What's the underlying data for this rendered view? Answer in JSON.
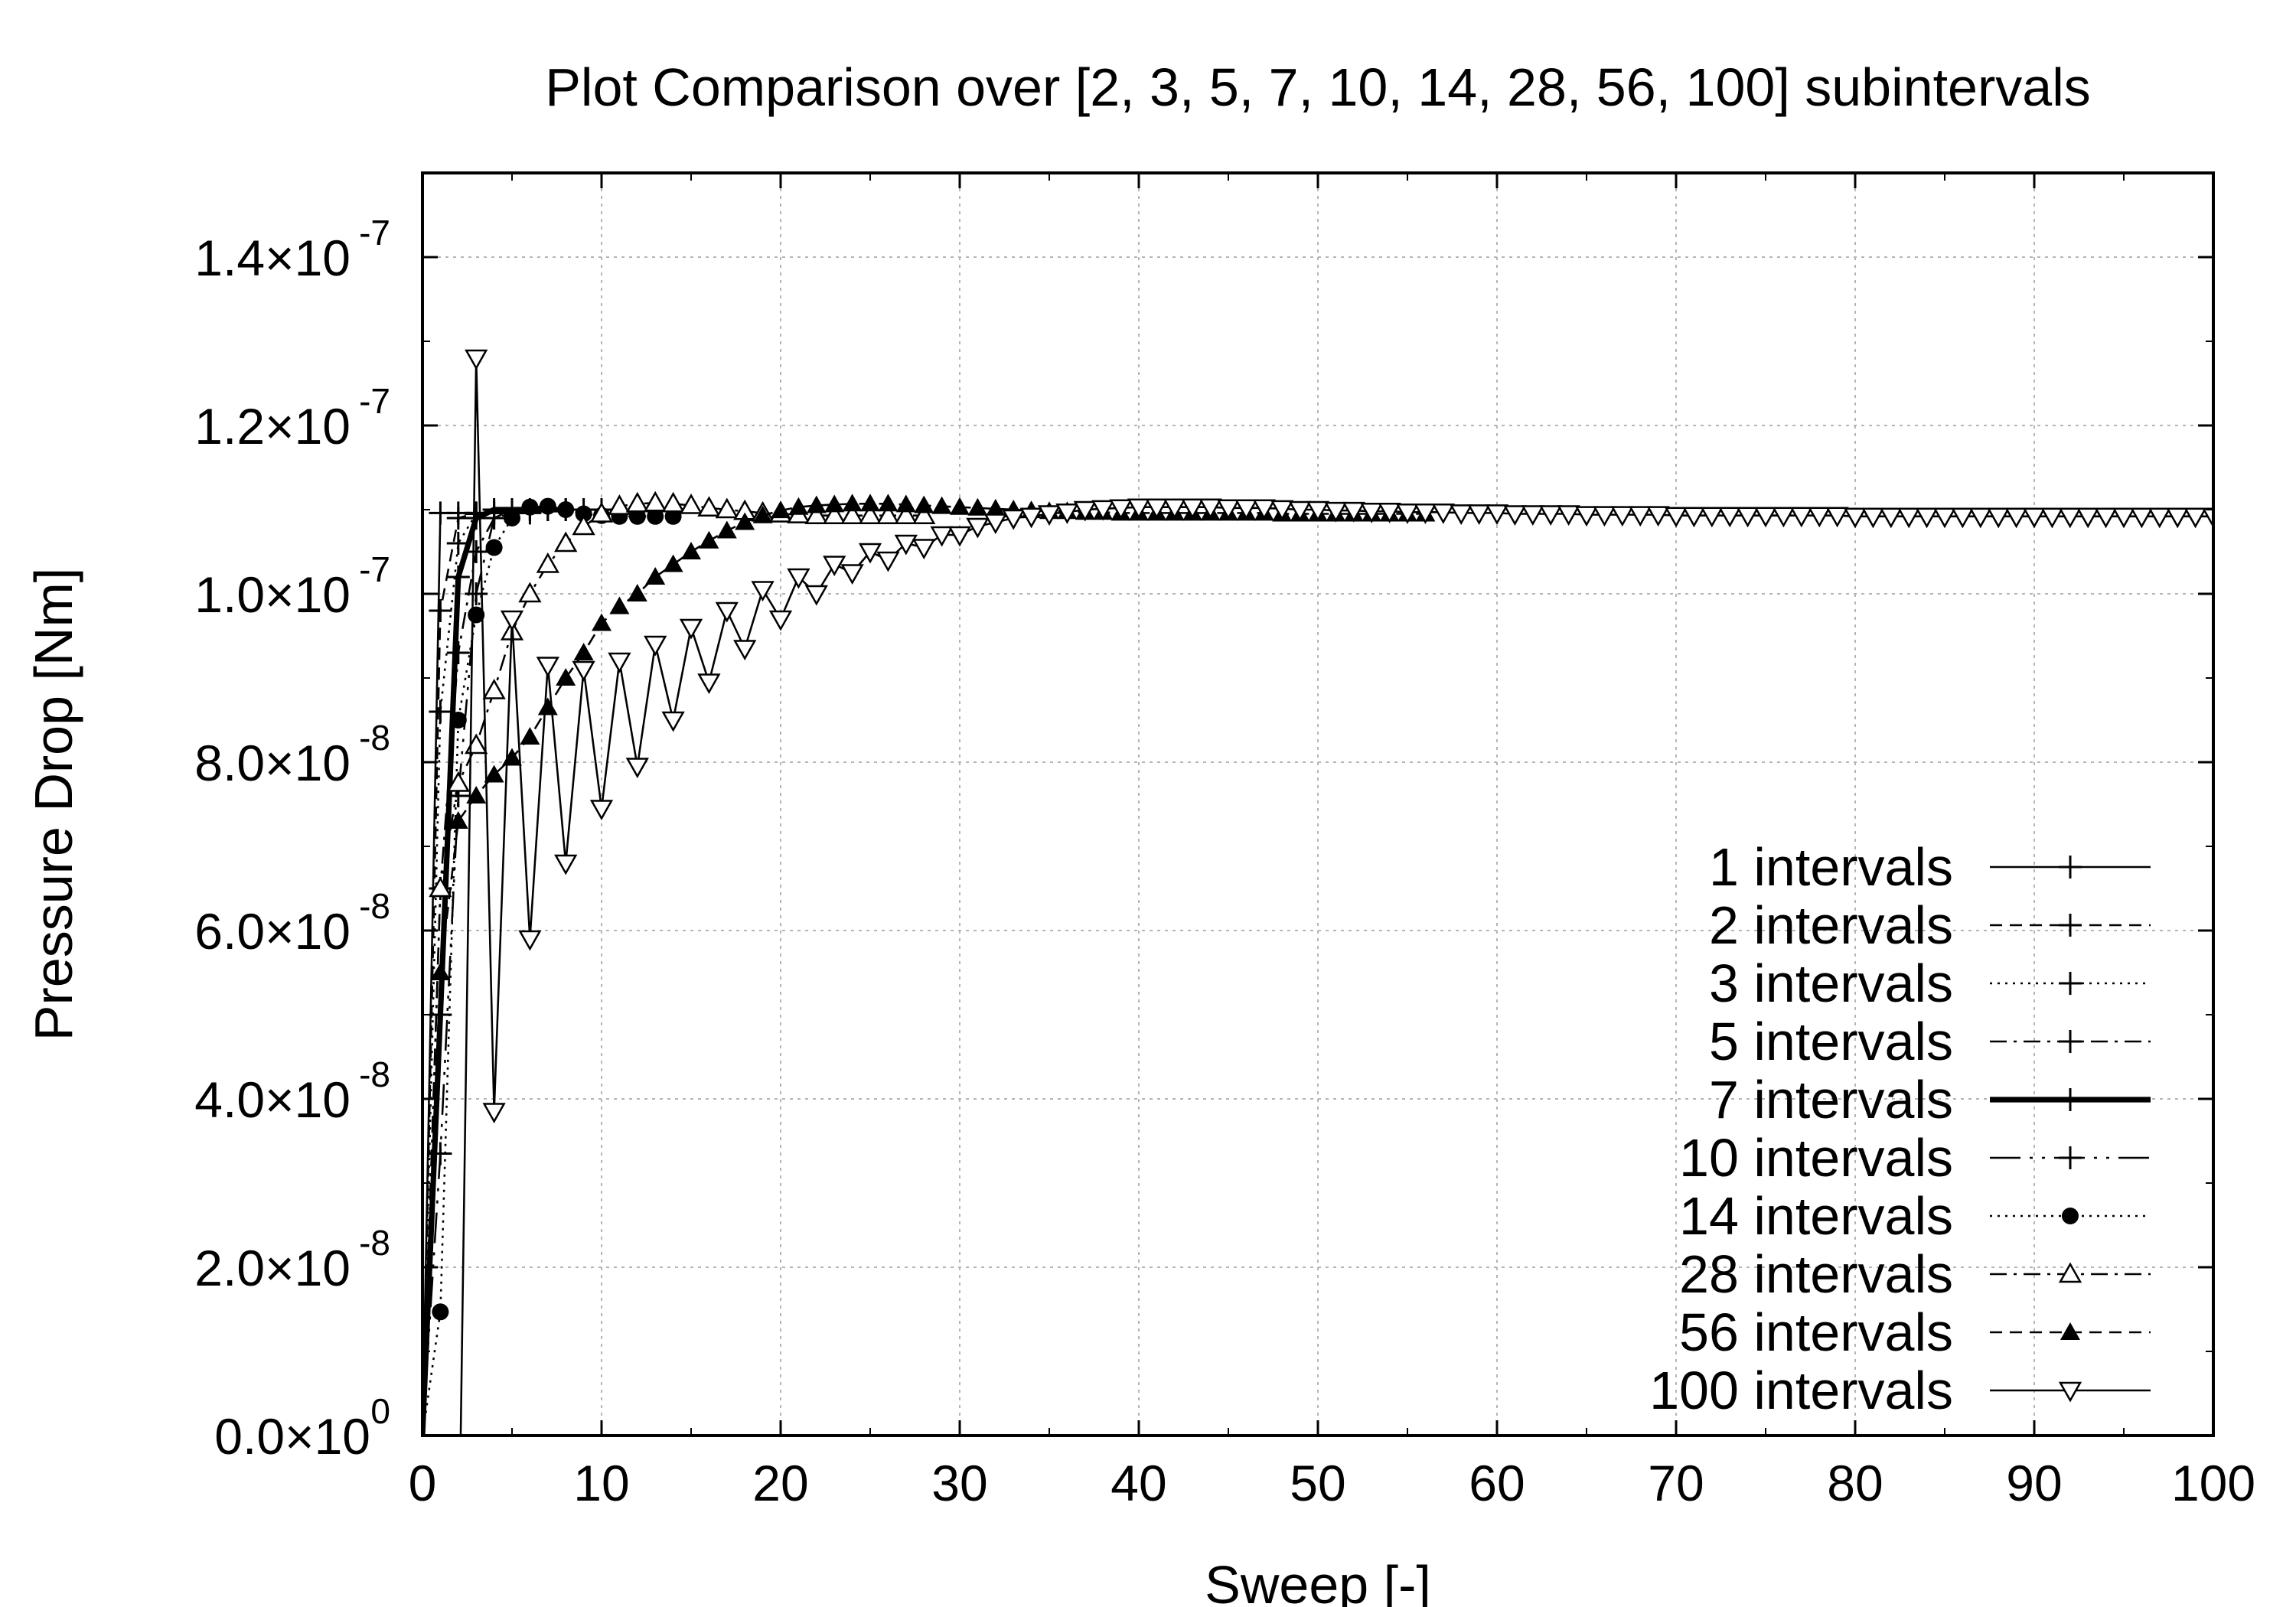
{
  "chart_data": {
    "type": "line",
    "title": "Plot Comparison over [2, 3, 5, 7, 10, 14, 28, 56, 100] subintervals",
    "xlabel": "Sweep [-]",
    "ylabel": "Pressure Drop [Nm]",
    "xlim": [
      0,
      100
    ],
    "ylim": [
      0,
      1.5e-07
    ],
    "grid": true,
    "legend_position": "bottom-right",
    "x_ticks": [
      {
        "value": 0,
        "label": "0"
      },
      {
        "value": 10,
        "label": "10"
      },
      {
        "value": 20,
        "label": "20"
      },
      {
        "value": 30,
        "label": "30"
      },
      {
        "value": 40,
        "label": "40"
      },
      {
        "value": 50,
        "label": "50"
      },
      {
        "value": 60,
        "label": "60"
      },
      {
        "value": 70,
        "label": "70"
      },
      {
        "value": 80,
        "label": "80"
      },
      {
        "value": 90,
        "label": "90"
      },
      {
        "value": 100,
        "label": "100"
      }
    ],
    "y_ticks": [
      {
        "value": 0,
        "mantissa": "0.0×10",
        "exponent": "0"
      },
      {
        "value": 2e-08,
        "mantissa": "2.0×10",
        "exponent": "-8"
      },
      {
        "value": 4e-08,
        "mantissa": "4.0×10",
        "exponent": "-8"
      },
      {
        "value": 6e-08,
        "mantissa": "6.0×10",
        "exponent": "-8"
      },
      {
        "value": 8e-08,
        "mantissa": "8.0×10",
        "exponent": "-8"
      },
      {
        "value": 1e-07,
        "mantissa": "1.0×10",
        "exponent": "-7"
      },
      {
        "value": 1.2e-07,
        "mantissa": "1.2×10",
        "exponent": "-7"
      },
      {
        "value": 1.4e-07,
        "mantissa": "1.4×10",
        "exponent": "-7"
      }
    ],
    "series": [
      {
        "name": "1 intervals",
        "marker": "plus",
        "dash": "solid",
        "line_width": 1.6,
        "x": [
          0,
          1,
          2,
          3
        ],
        "y": [
          0,
          1.096e-07,
          1.096e-07,
          1.096e-07
        ]
      },
      {
        "name": "2 intervals",
        "marker": "plus",
        "dash": "dashed",
        "line_width": 1.6,
        "x": [
          0,
          1,
          2,
          3,
          4
        ],
        "y": [
          0,
          9.8e-08,
          1.09e-07,
          1.096e-07,
          1.096e-07
        ]
      },
      {
        "name": "3 intervals",
        "marker": "plus",
        "dash": "dotted",
        "line_width": 1.6,
        "x": [
          0,
          1,
          2,
          3,
          4,
          5
        ],
        "y": [
          0,
          8.6e-08,
          1.06e-07,
          1.095e-07,
          1.096e-07,
          1.096e-07
        ]
      },
      {
        "name": "5 intervals",
        "marker": "plus",
        "dash": "dashdot",
        "line_width": 1.6,
        "x": [
          0,
          1,
          2,
          3,
          4,
          5,
          6
        ],
        "y": [
          0,
          6.5e-08,
          9.3e-08,
          1.05e-07,
          1.09e-07,
          1.096e-07,
          1.096e-07
        ]
      },
      {
        "name": "7 intervals",
        "marker": "plus",
        "dash": "solid",
        "line_width": 4.5,
        "x": [
          0,
          1,
          2,
          3,
          4,
          5,
          6,
          7,
          8
        ],
        "y": [
          0,
          5e-08,
          1.02e-07,
          1.09e-07,
          1.1e-07,
          1.1e-07,
          1.1e-07,
          1.1e-07,
          1.1e-07
        ]
      },
      {
        "name": "10 intervals",
        "marker": "plus",
        "dash": "longdashdot",
        "line_width": 1.6,
        "x": [
          0,
          1,
          2,
          3,
          4,
          5,
          6,
          7,
          8,
          9,
          10
        ],
        "y": [
          0,
          3.35e-08,
          7.6e-08,
          1e-07,
          1.09e-07,
          1.1e-07,
          1.1e-07,
          1.1e-07,
          1.1e-07,
          1.1e-07,
          1.1e-07
        ]
      },
      {
        "name": "14 intervals",
        "marker": "circle-filled",
        "dash": "dotted",
        "line_width": 1.6,
        "x": [
          0,
          1,
          2,
          3,
          4,
          5,
          6,
          7,
          8,
          9,
          10,
          11,
          12,
          13,
          14
        ],
        "y": [
          0,
          1.47e-08,
          8.5e-08,
          9.75e-08,
          1.055e-07,
          1.09e-07,
          1.103e-07,
          1.104e-07,
          1.1e-07,
          1.095e-07,
          1.093e-07,
          1.092e-07,
          1.092e-07,
          1.092e-07,
          1.092e-07
        ]
      },
      {
        "name": "28 intervals",
        "marker": "triangle-up-open",
        "dash": "dashdot",
        "line_width": 1.6,
        "x": [
          0,
          1,
          2,
          3,
          4,
          5,
          6,
          7,
          8,
          9,
          10,
          11,
          12,
          13,
          14,
          15,
          16,
          17,
          18,
          19,
          20,
          21,
          22,
          23,
          24,
          25,
          26,
          27,
          28
        ],
        "y": [
          0,
          6.5e-08,
          7.75e-08,
          8.2e-08,
          8.85e-08,
          9.55e-08,
          1e-07,
          1.035e-07,
          1.06e-07,
          1.08e-07,
          1.095e-07,
          1.104e-07,
          1.107e-07,
          1.108e-07,
          1.107e-07,
          1.105e-07,
          1.102e-07,
          1.1e-07,
          1.098e-07,
          1.096e-07,
          1.095e-07,
          1.094e-07,
          1.093e-07,
          1.093e-07,
          1.093e-07,
          1.093e-07,
          1.093e-07,
          1.093e-07,
          1.093e-07
        ]
      },
      {
        "name": "56 intervals",
        "marker": "triangle-up-filled",
        "dash": "dashed",
        "line_width": 1.6,
        "x": [
          0,
          1,
          2,
          3,
          4,
          5,
          6,
          7,
          8,
          9,
          10,
          11,
          12,
          13,
          14,
          15,
          16,
          17,
          18,
          19,
          20,
          21,
          22,
          23,
          24,
          25,
          26,
          27,
          28,
          29,
          30,
          31,
          32,
          33,
          34,
          35,
          36,
          37,
          38,
          39,
          40,
          41,
          42,
          43,
          44,
          45,
          46,
          47,
          48,
          49,
          50,
          51,
          52,
          53,
          54,
          55,
          56
        ],
        "y": [
          0,
          5.5e-08,
          7.3e-08,
          7.6e-08,
          7.85e-08,
          8.05e-08,
          8.3e-08,
          8.65e-08,
          9e-08,
          9.3e-08,
          9.65e-08,
          9.85e-08,
          1e-07,
          1.02e-07,
          1.035e-07,
          1.05e-07,
          1.063e-07,
          1.075e-07,
          1.085e-07,
          1.093e-07,
          1.099e-07,
          1.103e-07,
          1.105e-07,
          1.106e-07,
          1.107e-07,
          1.107e-07,
          1.107e-07,
          1.106e-07,
          1.105e-07,
          1.104e-07,
          1.103e-07,
          1.102e-07,
          1.101e-07,
          1.1e-07,
          1.099e-07,
          1.098e-07,
          1.098e-07,
          1.097e-07,
          1.097e-07,
          1.096e-07,
          1.096e-07,
          1.096e-07,
          1.096e-07,
          1.096e-07,
          1.096e-07,
          1.096e-07,
          1.096e-07,
          1.096e-07,
          1.095e-07,
          1.095e-07,
          1.095e-07,
          1.095e-07,
          1.095e-07,
          1.095e-07,
          1.095e-07,
          1.095e-07,
          1.095e-07
        ]
      },
      {
        "name": "100 intervals",
        "marker": "triangle-down-open",
        "dash": "solid",
        "line_width": 1.6,
        "x": [
          0,
          1,
          2,
          3,
          4,
          5,
          6,
          7,
          8,
          9,
          10,
          11,
          12,
          13,
          14,
          15,
          16,
          17,
          18,
          19,
          20,
          21,
          22,
          23,
          24,
          25,
          26,
          27,
          28,
          29,
          30,
          31,
          32,
          33,
          34,
          35,
          36,
          37,
          38,
          39,
          40,
          41,
          42,
          43,
          44,
          45,
          46,
          47,
          48,
          49,
          50,
          51,
          52,
          53,
          54,
          55,
          56,
          57,
          58,
          59,
          60,
          61,
          62,
          63,
          64,
          65,
          66,
          67,
          68,
          69,
          70,
          71,
          72,
          73,
          74,
          75,
          76,
          77,
          78,
          79,
          80,
          81,
          82,
          83,
          84,
          85,
          86,
          87,
          88,
          89,
          90,
          91,
          92,
          93,
          94,
          95,
          96,
          97,
          98,
          99,
          100
        ],
        "y": [
          0,
          -2e-08,
          -2e-08,
          1.28e-07,
          3.85e-08,
          9.7e-08,
          5.9e-08,
          9.15e-08,
          6.8e-08,
          9.1e-08,
          7.45e-08,
          9.2e-08,
          7.95e-08,
          9.4e-08,
          8.5e-08,
          9.6e-08,
          8.95e-08,
          9.8e-08,
          9.35e-08,
          1.005e-07,
          9.7e-08,
          1.02e-07,
          1e-07,
          1.035e-07,
          1.025e-07,
          1.05e-07,
          1.04e-07,
          1.06e-07,
          1.055e-07,
          1.07e-07,
          1.07e-07,
          1.08e-07,
          1.085e-07,
          1.09e-07,
          1.092e-07,
          1.095e-07,
          1.097e-07,
          1.1e-07,
          1.101e-07,
          1.102e-07,
          1.103e-07,
          1.103e-07,
          1.103e-07,
          1.103e-07,
          1.103e-07,
          1.102e-07,
          1.102e-07,
          1.102e-07,
          1.101e-07,
          1.1e-07,
          1.1e-07,
          1.099e-07,
          1.099e-07,
          1.098e-07,
          1.098e-07,
          1.097e-07,
          1.097e-07,
          1.097e-07,
          1.096e-07,
          1.096e-07,
          1.096e-07,
          1.095e-07,
          1.095e-07,
          1.095e-07,
          1.095e-07,
          1.094e-07,
          1.094e-07,
          1.094e-07,
          1.094e-07,
          1.094e-07,
          1.093e-07,
          1.093e-07,
          1.093e-07,
          1.093e-07,
          1.093e-07,
          1.093e-07,
          1.093e-07,
          1.093e-07,
          1.093e-07,
          1.093e-07,
          1.092e-07,
          1.092e-07,
          1.092e-07,
          1.092e-07,
          1.092e-07,
          1.092e-07,
          1.092e-07,
          1.092e-07,
          1.092e-07,
          1.092e-07,
          1.092e-07,
          1.092e-07,
          1.092e-07,
          1.092e-07,
          1.092e-07,
          1.092e-07,
          1.092e-07,
          1.092e-07,
          1.092e-07,
          1.092e-07,
          1.092e-07
        ]
      }
    ]
  }
}
